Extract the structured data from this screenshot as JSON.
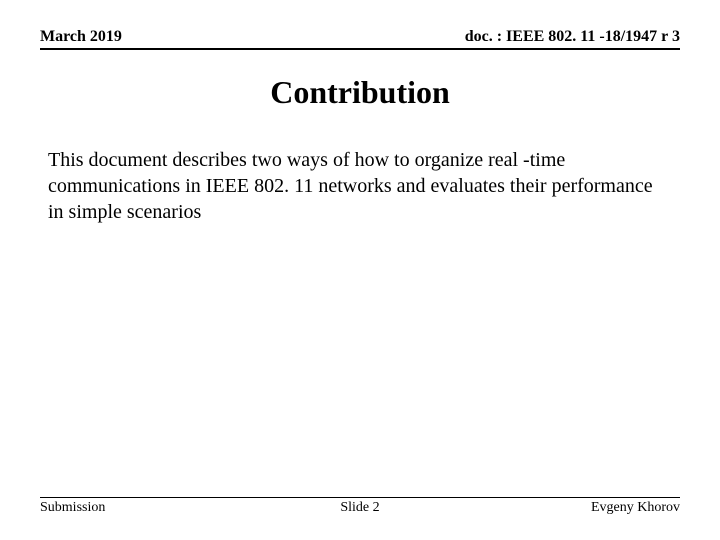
{
  "header": {
    "date": "March 2019",
    "doc_id": "doc. : IEEE 802. 11 -18/1947 r 3"
  },
  "title": "Contribution",
  "body": "This document describes two ways of how to organize real -time communications in IEEE 802. 11 networks and evaluates their performance in simple scenarios",
  "footer": {
    "left": "Submission",
    "center": "Slide 2",
    "right": "Evgeny Khorov"
  },
  "style": {
    "background_color": "#ffffff",
    "text_color": "#000000",
    "rule_color": "#000000",
    "header_font_size": 16,
    "title_font_size": 32,
    "body_font_size": 20,
    "footer_font_size": 14,
    "font_family": "Times New Roman"
  }
}
